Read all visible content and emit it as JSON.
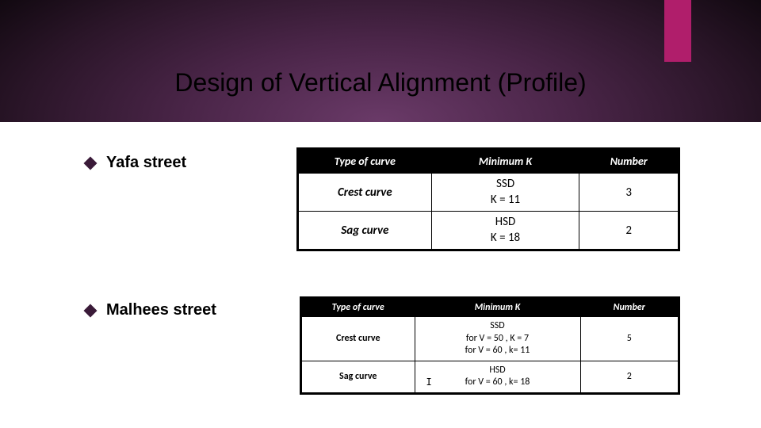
{
  "title": "Design of Vertical Alignment (Profile)",
  "bullets": {
    "yafa": "Yafa street",
    "malhees": "Malhees street"
  },
  "accent_color": "#b01e6b",
  "table1": {
    "headers": [
      "Type of curve",
      "Minimum K",
      "Number"
    ],
    "rows": [
      {
        "type": "Crest curve",
        "min_l1": "SSD",
        "min_l2": "K = 11",
        "num": "3"
      },
      {
        "type": "Sag curve",
        "min_l1": "HSD",
        "min_l2": "K = 18",
        "num": "2"
      }
    ],
    "col_widths": [
      "35%",
      "39%",
      "26%"
    ]
  },
  "table2": {
    "headers": [
      "Type of curve",
      "Minimum K",
      "Number"
    ],
    "rows": [
      {
        "type": "Crest curve",
        "min_l1": "SSD",
        "min_l2": "for V = 50 , K = 7",
        "min_l3": "for V = 60 , k= 11",
        "num": "5"
      },
      {
        "type": "Sag curve",
        "min_l1": "HSD",
        "min_l2": "for V = 60 , k= 18",
        "min_l3": "",
        "num": "2",
        "cursor": true
      }
    ],
    "col_widths": [
      "30%",
      "44%",
      "26%"
    ]
  }
}
